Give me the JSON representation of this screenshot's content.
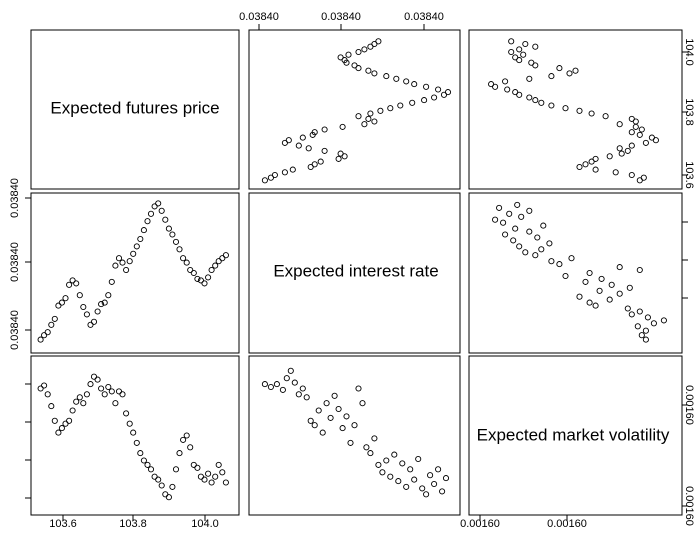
{
  "chart_data": {
    "type": "scatter",
    "layout": "scatterplot-matrix",
    "variables": [
      "Expected futures price",
      "Expected interest rate",
      "Expected market volatility"
    ],
    "ticks": {
      "futures_price": [
        "103.6",
        "103.8",
        "104.0"
      ],
      "interest_rate": [
        "0.03840",
        "0.03840",
        "0.03840"
      ],
      "market_volatility": [
        "0.00160",
        "0.00160",
        "0.00160"
      ]
    },
    "futures_price_range": [
      103.55,
      104.1
    ],
    "relative_range": [
      0,
      1
    ],
    "series": [
      {
        "pair": "interest-rate-vs-futures-price",
        "points": [
          [
            103.56,
            0.05
          ],
          [
            103.57,
            0.08
          ],
          [
            103.58,
            0.1
          ],
          [
            103.59,
            0.15
          ],
          [
            103.6,
            0.19
          ],
          [
            103.61,
            0.28
          ],
          [
            103.62,
            0.3
          ],
          [
            103.63,
            0.33
          ],
          [
            103.64,
            0.42
          ],
          [
            103.65,
            0.45
          ],
          [
            103.66,
            0.43
          ],
          [
            103.67,
            0.35
          ],
          [
            103.68,
            0.27
          ],
          [
            103.69,
            0.22
          ],
          [
            103.7,
            0.15
          ],
          [
            103.71,
            0.17
          ],
          [
            103.72,
            0.24
          ],
          [
            103.73,
            0.29
          ],
          [
            103.74,
            0.3
          ],
          [
            103.75,
            0.35
          ],
          [
            103.76,
            0.44
          ],
          [
            103.77,
            0.55
          ],
          [
            103.78,
            0.6
          ],
          [
            103.79,
            0.57
          ],
          [
            103.8,
            0.52
          ],
          [
            103.81,
            0.58
          ],
          [
            103.82,
            0.63
          ],
          [
            103.83,
            0.68
          ],
          [
            103.84,
            0.73
          ],
          [
            103.85,
            0.79
          ],
          [
            103.86,
            0.85
          ],
          [
            103.87,
            0.9
          ],
          [
            103.88,
            0.95
          ],
          [
            103.89,
            0.97
          ],
          [
            103.9,
            0.92
          ],
          [
            103.91,
            0.86
          ],
          [
            103.92,
            0.8
          ],
          [
            103.93,
            0.76
          ],
          [
            103.94,
            0.71
          ],
          [
            103.95,
            0.66
          ],
          [
            103.96,
            0.6
          ],
          [
            103.97,
            0.57
          ],
          [
            103.98,
            0.52
          ],
          [
            103.99,
            0.5
          ],
          [
            104.0,
            0.46
          ],
          [
            104.01,
            0.45
          ],
          [
            104.02,
            0.43
          ],
          [
            104.03,
            0.47
          ],
          [
            104.04,
            0.52
          ],
          [
            104.05,
            0.55
          ],
          [
            104.06,
            0.58
          ],
          [
            104.07,
            0.6
          ],
          [
            104.08,
            0.62
          ]
        ]
      },
      {
        "pair": "market-volatility-vs-futures-price",
        "points": [
          [
            103.56,
            0.82
          ],
          [
            103.57,
            0.84
          ],
          [
            103.58,
            0.78
          ],
          [
            103.59,
            0.7
          ],
          [
            103.6,
            0.6
          ],
          [
            103.61,
            0.52
          ],
          [
            103.62,
            0.55
          ],
          [
            103.63,
            0.58
          ],
          [
            103.64,
            0.6
          ],
          [
            103.65,
            0.67
          ],
          [
            103.66,
            0.73
          ],
          [
            103.67,
            0.76
          ],
          [
            103.68,
            0.72
          ],
          [
            103.69,
            0.78
          ],
          [
            103.7,
            0.85
          ],
          [
            103.71,
            0.9
          ],
          [
            103.72,
            0.88
          ],
          [
            103.73,
            0.82
          ],
          [
            103.74,
            0.78
          ],
          [
            103.75,
            0.83
          ],
          [
            103.76,
            0.8
          ],
          [
            103.77,
            0.72
          ],
          [
            103.78,
            0.8
          ],
          [
            103.79,
            0.78
          ],
          [
            103.8,
            0.65
          ],
          [
            103.81,
            0.58
          ],
          [
            103.82,
            0.52
          ],
          [
            103.83,
            0.45
          ],
          [
            103.84,
            0.38
          ],
          [
            103.85,
            0.33
          ],
          [
            103.86,
            0.3
          ],
          [
            103.87,
            0.27
          ],
          [
            103.88,
            0.22
          ],
          [
            103.89,
            0.2
          ],
          [
            103.9,
            0.16
          ],
          [
            103.91,
            0.1
          ],
          [
            103.92,
            0.08
          ],
          [
            103.93,
            0.15
          ],
          [
            103.94,
            0.27
          ],
          [
            103.95,
            0.38
          ],
          [
            103.96,
            0.47
          ],
          [
            103.97,
            0.5
          ],
          [
            103.98,
            0.42
          ],
          [
            103.99,
            0.3
          ],
          [
            104.0,
            0.28
          ],
          [
            104.01,
            0.22
          ],
          [
            104.02,
            0.2
          ],
          [
            104.03,
            0.24
          ],
          [
            104.04,
            0.18
          ],
          [
            104.05,
            0.22
          ],
          [
            104.06,
            0.3
          ],
          [
            104.07,
            0.25
          ],
          [
            104.08,
            0.18
          ]
        ]
      },
      {
        "pair": "market-volatility-vs-interest-rate",
        "points": [
          [
            0.05,
            0.85
          ],
          [
            0.08,
            0.83
          ],
          [
            0.11,
            0.85
          ],
          [
            0.14,
            0.81
          ],
          [
            0.16,
            0.89
          ],
          [
            0.18,
            0.94
          ],
          [
            0.2,
            0.86
          ],
          [
            0.22,
            0.78
          ],
          [
            0.24,
            0.82
          ],
          [
            0.26,
            0.76
          ],
          [
            0.28,
            0.6
          ],
          [
            0.3,
            0.57
          ],
          [
            0.32,
            0.67
          ],
          [
            0.34,
            0.52
          ],
          [
            0.36,
            0.72
          ],
          [
            0.38,
            0.62
          ],
          [
            0.4,
            0.77
          ],
          [
            0.42,
            0.68
          ],
          [
            0.44,
            0.55
          ],
          [
            0.46,
            0.63
          ],
          [
            0.48,
            0.45
          ],
          [
            0.5,
            0.57
          ],
          [
            0.52,
            0.82
          ],
          [
            0.54,
            0.72
          ],
          [
            0.56,
            0.42
          ],
          [
            0.58,
            0.38
          ],
          [
            0.6,
            0.48
          ],
          [
            0.62,
            0.3
          ],
          [
            0.64,
            0.25
          ],
          [
            0.66,
            0.33
          ],
          [
            0.68,
            0.22
          ],
          [
            0.7,
            0.37
          ],
          [
            0.72,
            0.19
          ],
          [
            0.74,
            0.31
          ],
          [
            0.76,
            0.15
          ],
          [
            0.78,
            0.27
          ],
          [
            0.8,
            0.2
          ],
          [
            0.82,
            0.34
          ],
          [
            0.84,
            0.14
          ],
          [
            0.86,
            0.1
          ],
          [
            0.88,
            0.23
          ],
          [
            0.9,
            0.17
          ],
          [
            0.92,
            0.27
          ],
          [
            0.94,
            0.12
          ],
          [
            0.96,
            0.21
          ]
        ]
      }
    ]
  }
}
